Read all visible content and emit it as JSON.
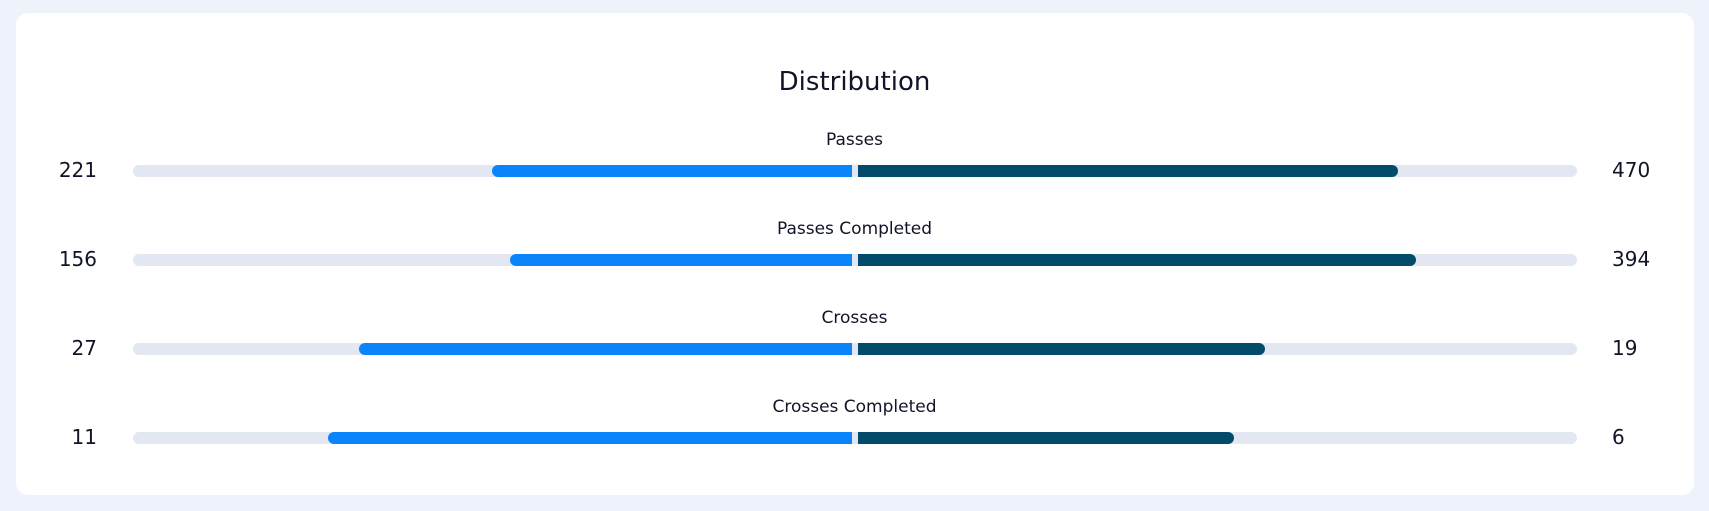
{
  "title": "Distribution",
  "colors": {
    "left_team": "#0a84fb",
    "right_team": "#024b6a",
    "track": "#e3e7f1",
    "background": "#edf2fb"
  },
  "stats": [
    {
      "label": "Passes",
      "left": "221",
      "right": "470",
      "left_value": 221,
      "right_value": 470
    },
    {
      "label": "Passes Completed",
      "left": "156",
      "right": "394",
      "left_value": 156,
      "right_value": 394
    },
    {
      "label": "Crosses",
      "left": "27",
      "right": "19",
      "left_value": 27,
      "right_value": 19
    },
    {
      "label": "Crosses Completed",
      "left": "11",
      "right": "6",
      "left_value": 11,
      "right_value": 6
    }
  ]
}
